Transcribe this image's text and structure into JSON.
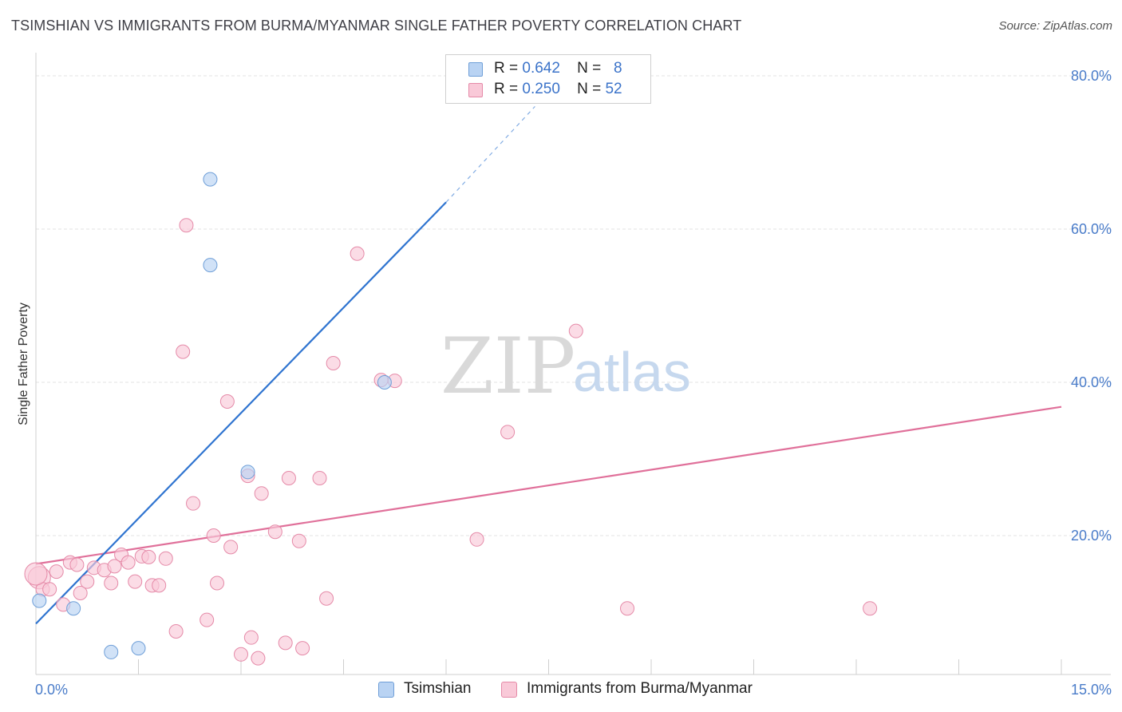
{
  "header": {
    "title": "TSIMSHIAN VS IMMIGRANTS FROM BURMA/MYANMAR SINGLE FATHER POVERTY CORRELATION CHART",
    "source": "Source: ZipAtlas.com"
  },
  "legend_top": {
    "rows": [
      {
        "r_label": "R =",
        "r_value": "0.642",
        "n_label": "N =",
        "n_value": "8"
      },
      {
        "r_label": "R =",
        "r_value": "0.250",
        "n_label": "N =",
        "n_value": "52"
      }
    ]
  },
  "legend_bottom": {
    "items": [
      {
        "label": "Tsimshian"
      },
      {
        "label": "Immigrants from Burma/Myanmar"
      }
    ]
  },
  "watermark": {
    "zip": "ZIP",
    "atlas": "atlas"
  },
  "colors": {
    "blue_fill": "#b9d3f3",
    "blue_stroke": "#6f9fd8",
    "blue_line": "#2f74d0",
    "pink_fill": "#f9c9d8",
    "pink_stroke": "#e58aa8",
    "pink_line": "#e0709a",
    "grid": "#e3e3e3",
    "axis_text": "#4a7cc9"
  },
  "chart_data": {
    "type": "scatter",
    "title": "TSIMSHIAN VS IMMIGRANTS FROM BURMA/MYANMAR SINGLE FATHER POVERTY CORRELATION CHART",
    "xlabel": "",
    "ylabel": "Single Father Poverty",
    "xlim": [
      0,
      15
    ],
    "ylim": [
      0,
      80
    ],
    "x_tick_labels": [
      {
        "value": 0,
        "label": "0.0%"
      },
      {
        "value": 15,
        "label": "15.0%"
      }
    ],
    "y_tick_labels": [
      {
        "value": 20,
        "label": "20.0%"
      },
      {
        "value": 40,
        "label": "40.0%"
      },
      {
        "value": 60,
        "label": "60.0%"
      },
      {
        "value": 80,
        "label": "80.0%"
      }
    ],
    "x_minor_ticks": [
      0,
      1.5,
      3,
      4.5,
      6,
      7.5,
      9,
      10.5,
      12,
      13.5,
      15
    ],
    "series": [
      {
        "name": "Tsimshian",
        "R": 0.642,
        "N": 8,
        "points": [
          [
            0.05,
            11.5
          ],
          [
            0.55,
            10.5
          ],
          [
            1.1,
            4.8
          ],
          [
            1.5,
            5.3
          ],
          [
            2.55,
            66.5
          ],
          [
            2.55,
            55.3
          ],
          [
            3.1,
            28.3
          ],
          [
            5.1,
            40.0
          ]
        ],
        "trend": {
          "x0": 0,
          "y0": 8.5,
          "x1": 6.0,
          "y1": 63.5,
          "dash_to": {
            "x": 7.3,
            "y": 76.0
          }
        }
      },
      {
        "name": "Immigrants from Burma/Myanmar",
        "R": 0.25,
        "N": 52,
        "points": [
          [
            0.05,
            14.5
          ],
          [
            0.1,
            13.0
          ],
          [
            0.2,
            13.0
          ],
          [
            0.3,
            15.3
          ],
          [
            0.4,
            11.0
          ],
          [
            0.5,
            16.5
          ],
          [
            0.6,
            16.2
          ],
          [
            0.65,
            12.5
          ],
          [
            0.75,
            14.0
          ],
          [
            0.85,
            15.8
          ],
          [
            1.0,
            15.5
          ],
          [
            1.1,
            13.8
          ],
          [
            1.15,
            16.0
          ],
          [
            1.25,
            17.5
          ],
          [
            1.35,
            16.5
          ],
          [
            1.45,
            14.0
          ],
          [
            1.55,
            17.3
          ],
          [
            1.65,
            17.2
          ],
          [
            1.7,
            13.5
          ],
          [
            1.8,
            13.5
          ],
          [
            1.9,
            17.0
          ],
          [
            2.05,
            7.5
          ],
          [
            2.15,
            44.0
          ],
          [
            2.2,
            60.5
          ],
          [
            2.3,
            24.2
          ],
          [
            2.5,
            9.0
          ],
          [
            2.6,
            20.0
          ],
          [
            2.65,
            13.8
          ],
          [
            2.8,
            37.5
          ],
          [
            2.85,
            18.5
          ],
          [
            3.0,
            4.5
          ],
          [
            3.1,
            27.8
          ],
          [
            3.15,
            6.7
          ],
          [
            3.25,
            4.0
          ],
          [
            3.3,
            25.5
          ],
          [
            3.5,
            20.5
          ],
          [
            3.65,
            6.0
          ],
          [
            3.7,
            27.5
          ],
          [
            3.85,
            19.3
          ],
          [
            3.9,
            5.3
          ],
          [
            4.15,
            27.5
          ],
          [
            4.25,
            11.8
          ],
          [
            4.35,
            42.5
          ],
          [
            4.7,
            56.8
          ],
          [
            5.05,
            40.3
          ],
          [
            5.25,
            40.2
          ],
          [
            6.45,
            19.5
          ],
          [
            6.9,
            33.5
          ],
          [
            7.9,
            46.7
          ],
          [
            8.65,
            10.5
          ],
          [
            12.2,
            10.5
          ],
          [
            0.0,
            15.0
          ]
        ],
        "trend": {
          "x0": 0,
          "y0": 16.3,
          "x1": 15.0,
          "y1": 36.8
        }
      }
    ]
  }
}
